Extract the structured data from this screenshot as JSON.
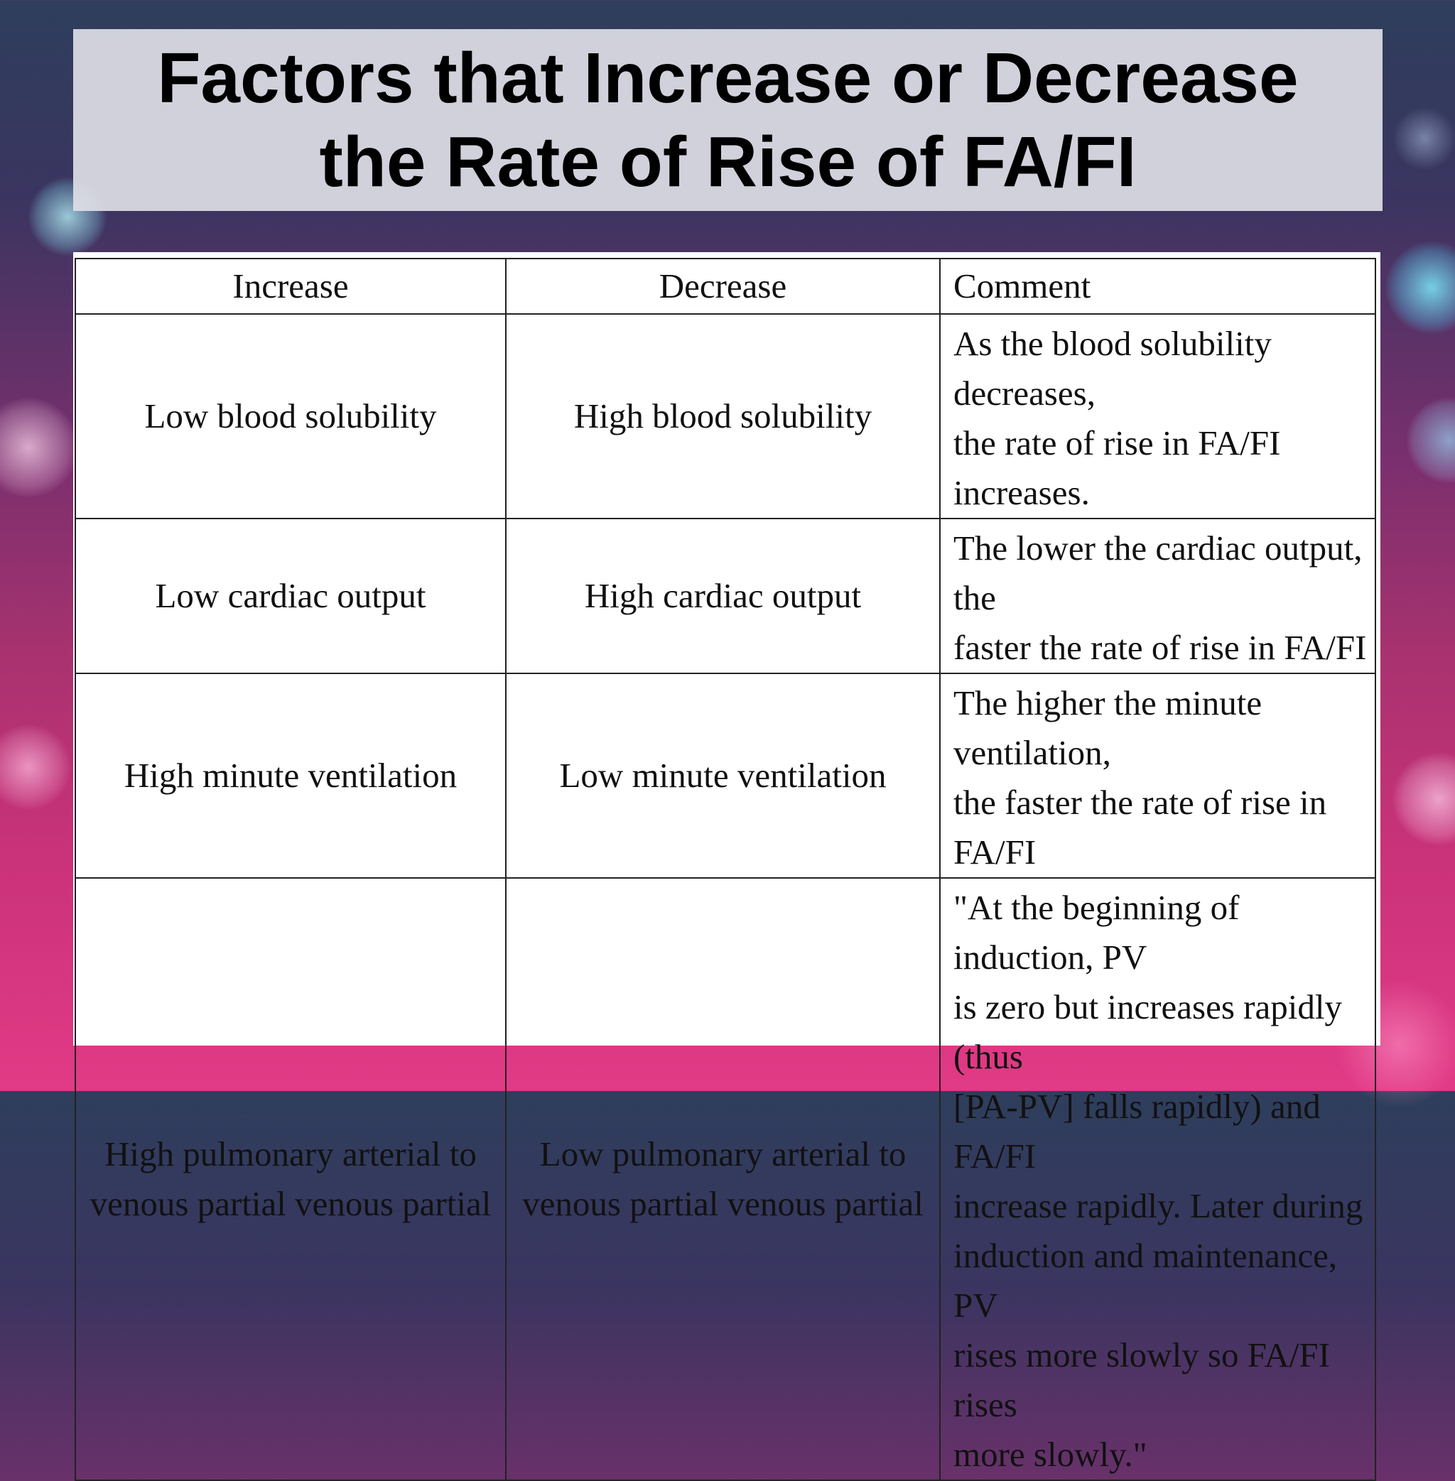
{
  "slide": {
    "title_line1": "Factors that Increase or Decrease",
    "title_line2": "the Rate of Rise of FA/FI"
  },
  "table": {
    "headers": [
      "Increase",
      "Decrease",
      "Comment"
    ],
    "rows": [
      {
        "increase": "Low blood solubility",
        "decrease": "High blood solubility",
        "comment_lines": [
          "As the blood solubility decreases,",
          "the rate of rise in FA/FI increases."
        ]
      },
      {
        "increase": "Low cardiac output",
        "decrease": "High cardiac output",
        "comment_lines": [
          "The lower the cardiac output, the",
          "faster the rate of rise in FA/FI"
        ]
      },
      {
        "increase": "High minute ventilation",
        "decrease": "Low minute ventilation",
        "comment_lines": [
          "The higher the minute ventilation,",
          "the faster the rate of rise in FA/FI"
        ]
      },
      {
        "increase_lines": [
          "High pulmonary arterial to",
          "venous partial venous partial"
        ],
        "decrease_lines": [
          "Low pulmonary arterial to",
          "venous partial venous partial"
        ],
        "comment_lines": [
          "\"At the beginning of induction, PV",
          "is zero but increases rapidly (thus",
          "[PA-PV] falls rapidly) and FA/FI",
          "increase rapidly.  Later during",
          "induction and maintenance, PV",
          "rises more slowly so FA/FI rises",
          "more slowly.\""
        ]
      }
    ]
  }
}
